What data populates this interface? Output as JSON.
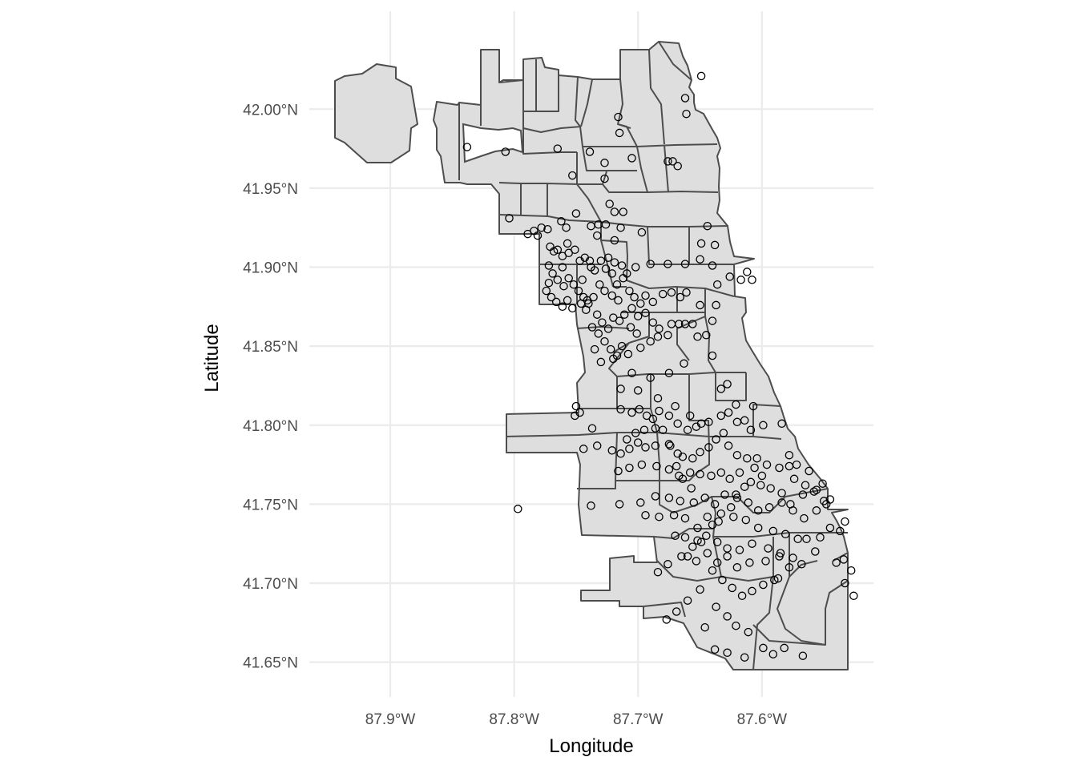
{
  "chart_data": {
    "type": "scatter",
    "subtype": "map-points-over-community-areas",
    "xlabel": "Longitude",
    "ylabel": "Latitude",
    "xlim": [
      -87.955,
      -87.51
    ],
    "ylim": [
      41.628,
      42.062
    ],
    "x_ticks": [
      {
        "value": -87.9,
        "label": "87.9°W"
      },
      {
        "value": -87.8,
        "label": "87.8°W"
      },
      {
        "value": -87.7,
        "label": "87.7°W"
      },
      {
        "value": -87.6,
        "label": "87.6°W"
      }
    ],
    "y_ticks": [
      {
        "value": 41.65,
        "label": "41.65°N"
      },
      {
        "value": 41.7,
        "label": "41.70°N"
      },
      {
        "value": 41.75,
        "label": "41.75°N"
      },
      {
        "value": 41.8,
        "label": "41.80°N"
      },
      {
        "value": 41.85,
        "label": "41.85°N"
      },
      {
        "value": 41.9,
        "label": "41.90°N"
      },
      {
        "value": 41.95,
        "label": "41.95°N"
      },
      {
        "value": 42.0,
        "label": "42.00°N"
      }
    ],
    "grid": true,
    "legend": "none",
    "colors": {
      "region_fill": "#dedede",
      "region_border": "#4d4d4d",
      "point_stroke": "#000000",
      "grid": "#ebebeb"
    },
    "points": [
      [
        -87.838,
        41.976
      ],
      [
        -87.807,
        41.973
      ],
      [
        -87.765,
        41.975
      ],
      [
        -87.739,
        41.973
      ],
      [
        -87.716,
        41.995
      ],
      [
        -87.715,
        41.985
      ],
      [
        -87.705,
        41.969
      ],
      [
        -87.676,
        41.967
      ],
      [
        -87.672,
        41.967
      ],
      [
        -87.668,
        41.964
      ],
      [
        -87.649,
        42.021
      ],
      [
        -87.662,
        42.007
      ],
      [
        -87.661,
        41.997
      ],
      [
        -87.753,
        41.958
      ],
      [
        -87.727,
        41.966
      ],
      [
        -87.727,
        41.956
      ],
      [
        -87.723,
        41.94
      ],
      [
        -87.719,
        41.935
      ],
      [
        -87.712,
        41.935
      ],
      [
        -87.732,
        41.927
      ],
      [
        -87.804,
        41.931
      ],
      [
        -87.784,
        41.923
      ],
      [
        -87.778,
        41.925
      ],
      [
        -87.773,
        41.924
      ],
      [
        -87.762,
        41.929
      ],
      [
        -87.758,
        41.925
      ],
      [
        -87.75,
        41.934
      ],
      [
        -87.738,
        41.926
      ],
      [
        -87.726,
        41.927
      ],
      [
        -87.714,
        41.925
      ],
      [
        -87.733,
        41.92
      ],
      [
        -87.719,
        41.917
      ],
      [
        -87.697,
        41.922
      ],
      [
        -87.644,
        41.926
      ],
      [
        -87.789,
        41.921
      ],
      [
        -87.781,
        41.92
      ],
      [
        -87.771,
        41.913
      ],
      [
        -87.768,
        41.91
      ],
      [
        -87.765,
        41.911
      ],
      [
        -87.761,
        41.907
      ],
      [
        -87.756,
        41.909
      ],
      [
        -87.751,
        41.911
      ],
      [
        -87.747,
        41.904
      ],
      [
        -87.743,
        41.906
      ],
      [
        -87.738,
        41.9
      ],
      [
        -87.735,
        41.898
      ],
      [
        -87.73,
        41.904
      ],
      [
        -87.724,
        41.906
      ],
      [
        -87.719,
        41.903
      ],
      [
        -87.713,
        41.901
      ],
      [
        -87.709,
        41.896
      ],
      [
        -87.702,
        41.9
      ],
      [
        -87.69,
        41.902
      ],
      [
        -87.676,
        41.902
      ],
      [
        -87.662,
        41.902
      ],
      [
        -87.65,
        41.905
      ],
      [
        -87.64,
        41.901
      ],
      [
        -87.626,
        41.894
      ],
      [
        -87.608,
        41.892
      ],
      [
        -87.636,
        41.889
      ],
      [
        -87.772,
        41.901
      ],
      [
        -87.769,
        41.896
      ],
      [
        -87.765,
        41.892
      ],
      [
        -87.76,
        41.888
      ],
      [
        -87.756,
        41.893
      ],
      [
        -87.752,
        41.889
      ],
      [
        -87.748,
        41.885
      ],
      [
        -87.744,
        41.881
      ],
      [
        -87.74,
        41.877
      ],
      [
        -87.736,
        41.881
      ],
      [
        -87.731,
        41.889
      ],
      [
        -87.727,
        41.885
      ],
      [
        -87.721,
        41.882
      ],
      [
        -87.717,
        41.889
      ],
      [
        -87.712,
        41.893
      ],
      [
        -87.707,
        41.885
      ],
      [
        -87.703,
        41.881
      ],
      [
        -87.698,
        41.877
      ],
      [
        -87.694,
        41.882
      ],
      [
        -87.688,
        41.878
      ],
      [
        -87.68,
        41.883
      ],
      [
        -87.673,
        41.884
      ],
      [
        -87.666,
        41.881
      ],
      [
        -87.661,
        41.884
      ],
      [
        -87.65,
        41.876
      ],
      [
        -87.637,
        41.876
      ],
      [
        -87.774,
        41.885
      ],
      [
        -87.77,
        41.881
      ],
      [
        -87.766,
        41.878
      ],
      [
        -87.761,
        41.875
      ],
      [
        -87.757,
        41.879
      ],
      [
        -87.753,
        41.874
      ],
      [
        -87.746,
        41.877
      ],
      [
        -87.742,
        41.873
      ],
      [
        -87.733,
        41.87
      ],
      [
        -87.729,
        41.865
      ],
      [
        -87.724,
        41.861
      ],
      [
        -87.72,
        41.868
      ],
      [
        -87.715,
        41.866
      ],
      [
        -87.711,
        41.87
      ],
      [
        -87.706,
        41.862
      ],
      [
        -87.701,
        41.858
      ],
      [
        -87.737,
        41.862
      ],
      [
        -87.732,
        41.858
      ],
      [
        -87.727,
        41.853
      ],
      [
        -87.722,
        41.848
      ],
      [
        -87.717,
        41.844
      ],
      [
        -87.713,
        41.85
      ],
      [
        -87.708,
        41.845
      ],
      [
        -87.698,
        41.849
      ],
      [
        -87.69,
        41.853
      ],
      [
        -87.684,
        41.856
      ],
      [
        -87.673,
        41.864
      ],
      [
        -87.667,
        41.864
      ],
      [
        -87.662,
        41.864
      ],
      [
        -87.656,
        41.864
      ],
      [
        -87.652,
        41.856
      ],
      [
        -87.64,
        41.866
      ],
      [
        -87.645,
        41.857
      ],
      [
        -87.735,
        41.848
      ],
      [
        -87.73,
        41.84
      ],
      [
        -87.72,
        41.842
      ],
      [
        -87.705,
        41.833
      ],
      [
        -87.69,
        41.83
      ],
      [
        -87.675,
        41.833
      ],
      [
        -87.663,
        41.839
      ],
      [
        -87.64,
        41.844
      ],
      [
        -87.649,
        41.801
      ],
      [
        -87.658,
        41.806
      ],
      [
        -87.67,
        41.812
      ],
      [
        -87.684,
        41.817
      ],
      [
        -87.7,
        41.822
      ],
      [
        -87.714,
        41.823
      ],
      [
        -87.633,
        41.823
      ],
      [
        -87.628,
        41.826
      ],
      [
        -87.621,
        41.813
      ],
      [
        -87.607,
        41.812
      ],
      [
        -87.599,
        41.8
      ],
      [
        -87.584,
        41.801
      ],
      [
        -87.75,
        41.812
      ],
      [
        -87.747,
        41.808
      ],
      [
        -87.751,
        41.806
      ],
      [
        -87.737,
        41.798
      ],
      [
        -87.714,
        41.81
      ],
      [
        -87.705,
        41.808
      ],
      [
        -87.699,
        41.81
      ],
      [
        -87.693,
        41.806
      ],
      [
        -87.688,
        41.804
      ],
      [
        -87.683,
        41.809
      ],
      [
        -87.675,
        41.806
      ],
      [
        -87.668,
        41.801
      ],
      [
        -87.66,
        41.797
      ],
      [
        -87.653,
        41.799
      ],
      [
        -87.643,
        41.802
      ],
      [
        -87.633,
        41.806
      ],
      [
        -87.627,
        41.808
      ],
      [
        -87.62,
        41.802
      ],
      [
        -87.614,
        41.803
      ],
      [
        -87.609,
        41.797
      ],
      [
        -87.744,
        41.785
      ],
      [
        -87.733,
        41.787
      ],
      [
        -87.721,
        41.784
      ],
      [
        -87.714,
        41.782
      ],
      [
        -87.707,
        41.785
      ],
      [
        -87.7,
        41.789
      ],
      [
        -87.694,
        41.786
      ],
      [
        -87.686,
        41.787
      ],
      [
        -87.675,
        41.788
      ],
      [
        -87.668,
        41.782
      ],
      [
        -87.664,
        41.78
      ],
      [
        -87.656,
        41.779
      ],
      [
        -87.65,
        41.783
      ],
      [
        -87.643,
        41.786
      ],
      [
        -87.637,
        41.791
      ],
      [
        -87.631,
        41.795
      ],
      [
        -87.627,
        41.787
      ],
      [
        -87.62,
        41.781
      ],
      [
        -87.612,
        41.779
      ],
      [
        -87.604,
        41.779
      ],
      [
        -87.596,
        41.775
      ],
      [
        -87.586,
        41.773
      ],
      [
        -87.578,
        41.774
      ],
      [
        -87.574,
        41.766
      ],
      [
        -87.565,
        41.762
      ],
      [
        -87.558,
        41.758
      ],
      [
        -87.55,
        41.752
      ],
      [
        -87.716,
        41.771
      ],
      [
        -87.707,
        41.773
      ],
      [
        -87.697,
        41.775
      ],
      [
        -87.685,
        41.774
      ],
      [
        -87.675,
        41.772
      ],
      [
        -87.667,
        41.768
      ],
      [
        -87.658,
        41.77
      ],
      [
        -87.65,
        41.769
      ],
      [
        -87.641,
        41.768
      ],
      [
        -87.633,
        41.77
      ],
      [
        -87.626,
        41.766
      ],
      [
        -87.618,
        41.77
      ],
      [
        -87.609,
        41.764
      ],
      [
        -87.601,
        41.762
      ],
      [
        -87.593,
        41.76
      ],
      [
        -87.584,
        41.757
      ],
      [
        -87.577,
        41.75
      ],
      [
        -87.567,
        41.756
      ],
      [
        -87.556,
        41.759
      ],
      [
        -87.545,
        41.753
      ],
      [
        -87.738,
        41.749
      ],
      [
        -87.715,
        41.75
      ],
      [
        -87.698,
        41.751
      ],
      [
        -87.686,
        41.755
      ],
      [
        -87.675,
        41.754
      ],
      [
        -87.666,
        41.752
      ],
      [
        -87.655,
        41.751
      ],
      [
        -87.646,
        41.754
      ],
      [
        -87.638,
        41.75
      ],
      [
        -87.63,
        41.756
      ],
      [
        -87.62,
        41.754
      ],
      [
        -87.611,
        41.751
      ],
      [
        -87.603,
        41.746
      ],
      [
        -87.594,
        41.748
      ],
      [
        -87.584,
        41.751
      ],
      [
        -87.575,
        41.746
      ],
      [
        -87.566,
        41.741
      ],
      [
        -87.556,
        41.746
      ],
      [
        -87.548,
        41.75
      ],
      [
        -87.694,
        41.743
      ],
      [
        -87.683,
        41.742
      ],
      [
        -87.671,
        41.743
      ],
      [
        -87.662,
        41.741
      ],
      [
        -87.652,
        41.735
      ],
      [
        -87.644,
        41.742
      ],
      [
        -87.635,
        41.739
      ],
      [
        -87.623,
        41.742
      ],
      [
        -87.613,
        41.74
      ],
      [
        -87.603,
        41.735
      ],
      [
        -87.591,
        41.733
      ],
      [
        -87.581,
        41.731
      ],
      [
        -87.571,
        41.728
      ],
      [
        -87.564,
        41.728
      ],
      [
        -87.553,
        41.729
      ],
      [
        -87.545,
        41.735
      ],
      [
        -87.537,
        41.733
      ],
      [
        -87.67,
        41.73
      ],
      [
        -87.662,
        41.729
      ],
      [
        -87.652,
        41.727
      ],
      [
        -87.645,
        41.73
      ],
      [
        -87.636,
        41.726
      ],
      [
        -87.628,
        41.722
      ],
      [
        -87.618,
        41.721
      ],
      [
        -87.608,
        41.725
      ],
      [
        -87.595,
        41.722
      ],
      [
        -87.585,
        41.719
      ],
      [
        -87.575,
        41.716
      ],
      [
        -87.557,
        41.72
      ],
      [
        -87.534,
        41.715
      ],
      [
        -87.528,
        41.708
      ],
      [
        -87.66,
        41.717
      ],
      [
        -87.653,
        41.714
      ],
      [
        -87.644,
        41.719
      ],
      [
        -87.636,
        41.713
      ],
      [
        -87.628,
        41.717
      ],
      [
        -87.62,
        41.71
      ],
      [
        -87.61,
        41.713
      ],
      [
        -87.597,
        41.714
      ],
      [
        -87.586,
        41.717
      ],
      [
        -87.578,
        41.71
      ],
      [
        -87.568,
        41.712
      ],
      [
        -87.64,
        41.708
      ],
      [
        -87.632,
        41.702
      ],
      [
        -87.624,
        41.697
      ],
      [
        -87.616,
        41.692
      ],
      [
        -87.608,
        41.695
      ],
      [
        -87.599,
        41.699
      ],
      [
        -87.59,
        41.702
      ],
      [
        -87.65,
        41.696
      ],
      [
        -87.66,
        41.689
      ],
      [
        -87.669,
        41.682
      ],
      [
        -87.677,
        41.677
      ],
      [
        -87.637,
        41.685
      ],
      [
        -87.628,
        41.679
      ],
      [
        -87.621,
        41.673
      ],
      [
        -87.611,
        41.669
      ],
      [
        -87.646,
        41.672
      ],
      [
        -87.638,
        41.658
      ],
      [
        -87.628,
        41.656
      ],
      [
        -87.614,
        41.653
      ],
      [
        -87.599,
        41.659
      ],
      [
        -87.591,
        41.655
      ],
      [
        -87.582,
        41.659
      ],
      [
        -87.567,
        41.654
      ],
      [
        -87.54,
        41.713
      ],
      [
        -87.533,
        41.7
      ],
      [
        -87.526,
        41.692
      ],
      [
        -87.587,
        41.703
      ],
      [
        -87.533,
        41.739
      ],
      [
        -87.551,
        41.763
      ],
      [
        -87.562,
        41.771
      ],
      [
        -87.572,
        41.775
      ],
      [
        -87.578,
        41.781
      ],
      [
        -87.606,
        41.773
      ],
      [
        -87.6,
        41.768
      ],
      [
        -87.614,
        41.761
      ],
      [
        -87.621,
        41.756
      ],
      [
        -87.625,
        41.748
      ],
      [
        -87.633,
        41.744
      ],
      [
        -87.64,
        41.737
      ],
      [
        -87.649,
        41.726
      ],
      [
        -87.656,
        41.723
      ],
      [
        -87.665,
        41.717
      ],
      [
        -87.676,
        41.712
      ],
      [
        -87.684,
        41.707
      ],
      [
        -87.657,
        41.76
      ],
      [
        -87.664,
        41.766
      ],
      [
        -87.669,
        41.774
      ],
      [
        -87.674,
        41.787
      ],
      [
        -87.68,
        41.797
      ],
      [
        -87.686,
        41.798
      ],
      [
        -87.695,
        41.797
      ],
      [
        -87.702,
        41.795
      ],
      [
        -87.709,
        41.791
      ],
      [
        -87.797,
        41.747
      ],
      [
        -87.741,
        41.879
      ],
      [
        -87.745,
        41.892
      ],
      [
        -87.739,
        41.904
      ],
      [
        -87.726,
        41.899
      ],
      [
        -87.721,
        41.896
      ],
      [
        -87.716,
        41.879
      ],
      [
        -87.705,
        41.874
      ],
      [
        -87.7,
        41.869
      ],
      [
        -87.694,
        41.871
      ],
      [
        -87.688,
        41.865
      ],
      [
        -87.683,
        41.861
      ],
      [
        -87.676,
        41.857
      ],
      [
        -87.649,
        41.915
      ],
      [
        -87.638,
        41.914
      ],
      [
        -87.617,
        41.892
      ],
      [
        -87.612,
        41.897
      ],
      [
        -87.757,
        41.915
      ],
      [
        -87.761,
        41.9
      ],
      [
        -87.772,
        41.89
      ]
    ]
  }
}
